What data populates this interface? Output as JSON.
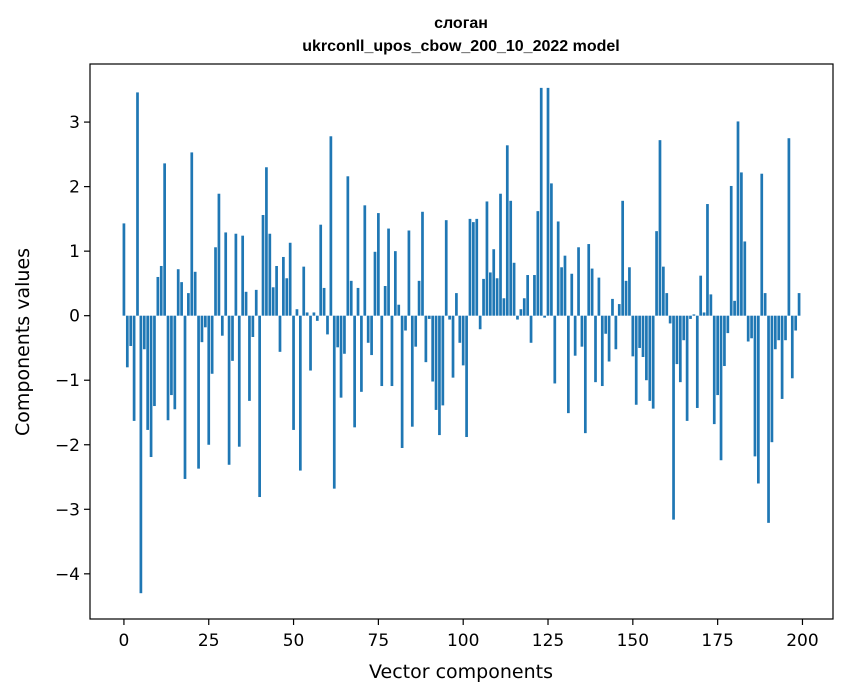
{
  "chart_data": {
    "type": "bar",
    "title": "слоган",
    "subtitle": "ukrconll_upos_cbow_200_10_2022 model",
    "xlabel": "Vector components",
    "ylabel": "Components values",
    "xlim": [
      -10,
      209
    ],
    "ylim": [
      -4.7,
      3.9
    ],
    "xticks": [
      0,
      25,
      50,
      75,
      100,
      125,
      150,
      175,
      200
    ],
    "yticks": [
      -4,
      -3,
      -2,
      -1,
      0,
      1,
      2,
      3
    ],
    "grid": false,
    "bar_color": "#1f77b4",
    "x": [
      0,
      1,
      2,
      3,
      4,
      5,
      6,
      7,
      8,
      9,
      10,
      11,
      12,
      13,
      14,
      15,
      16,
      17,
      18,
      19,
      20,
      21,
      22,
      23,
      24,
      25,
      26,
      27,
      28,
      29,
      30,
      31,
      32,
      33,
      34,
      35,
      36,
      37,
      38,
      39,
      40,
      41,
      42,
      43,
      44,
      45,
      46,
      47,
      48,
      49,
      50,
      51,
      52,
      53,
      54,
      55,
      56,
      57,
      58,
      59,
      60,
      61,
      62,
      63,
      64,
      65,
      66,
      67,
      68,
      69,
      70,
      71,
      72,
      73,
      74,
      75,
      76,
      77,
      78,
      79,
      80,
      81,
      82,
      83,
      84,
      85,
      86,
      87,
      88,
      89,
      90,
      91,
      92,
      93,
      94,
      95,
      96,
      97,
      98,
      99,
      100,
      101,
      102,
      103,
      104,
      105,
      106,
      107,
      108,
      109,
      110,
      111,
      112,
      113,
      114,
      115,
      116,
      117,
      118,
      119,
      120,
      121,
      122,
      123,
      124,
      125,
      126,
      127,
      128,
      129,
      130,
      131,
      132,
      133,
      134,
      135,
      136,
      137,
      138,
      139,
      140,
      141,
      142,
      143,
      144,
      145,
      146,
      147,
      148,
      149,
      150,
      151,
      152,
      153,
      154,
      155,
      156,
      157,
      158,
      159,
      160,
      161,
      162,
      163,
      164,
      165,
      166,
      167,
      168,
      169,
      170,
      171,
      172,
      173,
      174,
      175,
      176,
      177,
      178,
      179,
      180,
      181,
      182,
      183,
      184,
      185,
      186,
      187,
      188,
      189,
      190,
      191,
      192,
      193,
      194,
      195,
      196,
      197,
      198,
      199
    ],
    "values": [
      1.43,
      -0.8,
      -0.47,
      -1.63,
      3.46,
      -4.3,
      -0.52,
      -1.77,
      -2.19,
      -1.4,
      0.6,
      0.77,
      2.36,
      -1.62,
      -1.23,
      -1.45,
      0.72,
      0.52,
      -2.53,
      0.35,
      2.53,
      0.68,
      -2.37,
      -0.41,
      -0.18,
      -2.0,
      -0.9,
      1.06,
      1.89,
      -0.31,
      1.29,
      -2.31,
      -0.7,
      1.27,
      -2.03,
      1.24,
      0.37,
      -1.32,
      -0.33,
      0.4,
      -2.81,
      1.56,
      2.3,
      1.27,
      0.44,
      0.77,
      -0.56,
      0.91,
      0.58,
      1.13,
      -1.77,
      0.1,
      -2.4,
      0.76,
      0.05,
      -0.85,
      0.05,
      -0.08,
      1.41,
      0.43,
      -0.29,
      2.78,
      -2.68,
      -0.49,
      -1.27,
      -0.59,
      2.16,
      0.54,
      -1.73,
      0.43,
      -1.18,
      1.71,
      -0.42,
      -0.61,
      0.99,
      1.59,
      -1.09,
      0.46,
      1.35,
      -1.09,
      1.0,
      0.17,
      -2.05,
      -0.23,
      1.32,
      -1.72,
      -0.48,
      0.54,
      1.61,
      -0.72,
      -0.05,
      -1.02,
      -1.46,
      -1.85,
      -1.39,
      1.48,
      -0.06,
      -0.96,
      0.35,
      -0.42,
      -0.77,
      -1.88,
      1.5,
      1.45,
      1.5,
      -0.21,
      0.57,
      1.77,
      0.67,
      1.03,
      0.58,
      1.89,
      0.27,
      2.64,
      1.78,
      0.82,
      -0.06,
      0.1,
      0.27,
      0.63,
      -0.42,
      0.63,
      1.62,
      3.53,
      -0.03,
      3.53,
      2.05,
      -1.05,
      1.46,
      0.75,
      0.93,
      -1.51,
      0.65,
      -0.62,
      1.06,
      -0.48,
      -1.82,
      1.11,
      0.73,
      -1.03,
      0.59,
      -1.09,
      -0.28,
      -0.71,
      0.26,
      -0.52,
      0.18,
      1.78,
      0.54,
      0.75,
      -0.63,
      -1.38,
      -0.5,
      -0.64,
      -1.0,
      -1.32,
      -1.44,
      1.31,
      2.72,
      0.76,
      0.35,
      -0.12,
      -3.16,
      -0.75,
      -1.03,
      -0.38,
      -1.63,
      -0.05,
      0.02,
      -1.43,
      0.62,
      0.05,
      1.73,
      0.33,
      -1.68,
      -1.23,
      -2.24,
      -0.78,
      -0.27,
      2.01,
      0.23,
      3.01,
      2.22,
      1.15,
      -0.4,
      -0.35,
      -2.18,
      -2.6,
      2.2,
      0.35,
      -3.21,
      -1.96,
      -0.52,
      -0.38,
      -1.29,
      -0.38,
      2.75,
      -0.97,
      -0.23,
      0.35
    ]
  }
}
